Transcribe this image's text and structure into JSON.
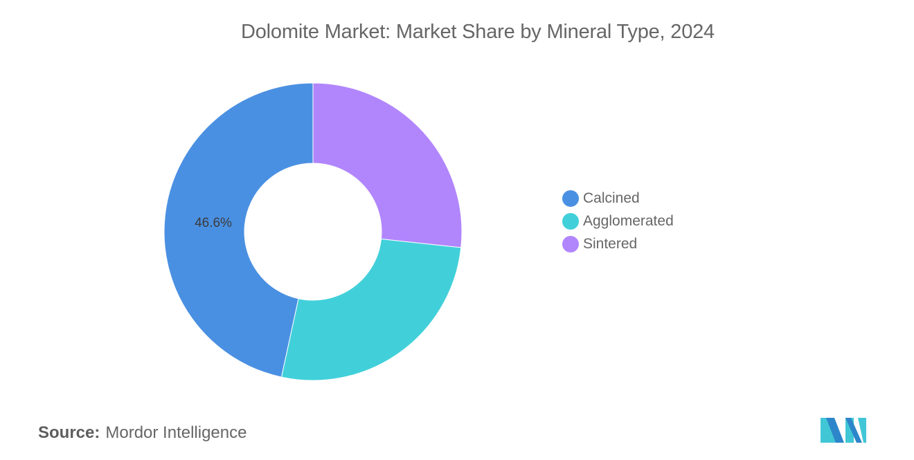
{
  "title": "Dolomite Market: Market Share by Mineral Type, 2024",
  "source": {
    "label": "Source:",
    "value": "Mordor Intelligence"
  },
  "legend": [
    {
      "label": "Calcined",
      "color": "#4a90e2"
    },
    {
      "label": "Agglomerated",
      "color": "#41d0da"
    },
    {
      "label": "Sintered",
      "color": "#b186fc"
    }
  ],
  "slice_labels": {
    "calcined": "46.6%"
  },
  "chart_data": {
    "type": "pie",
    "variant": "donut",
    "title": "Dolomite Market: Market Share by Mineral Type, 2024",
    "categories": [
      "Calcined",
      "Agglomerated",
      "Sintered"
    ],
    "values": [
      46.6,
      26.7,
      26.7
    ],
    "labeled_values": {
      "Calcined": "46.6%"
    },
    "colors": [
      "#4a90e2",
      "#41d0da",
      "#b186fc"
    ],
    "legend_position": "right",
    "note": "Only Calcined is labeled (46.6%); Agglomerated and Sintered estimated from slice angles."
  }
}
